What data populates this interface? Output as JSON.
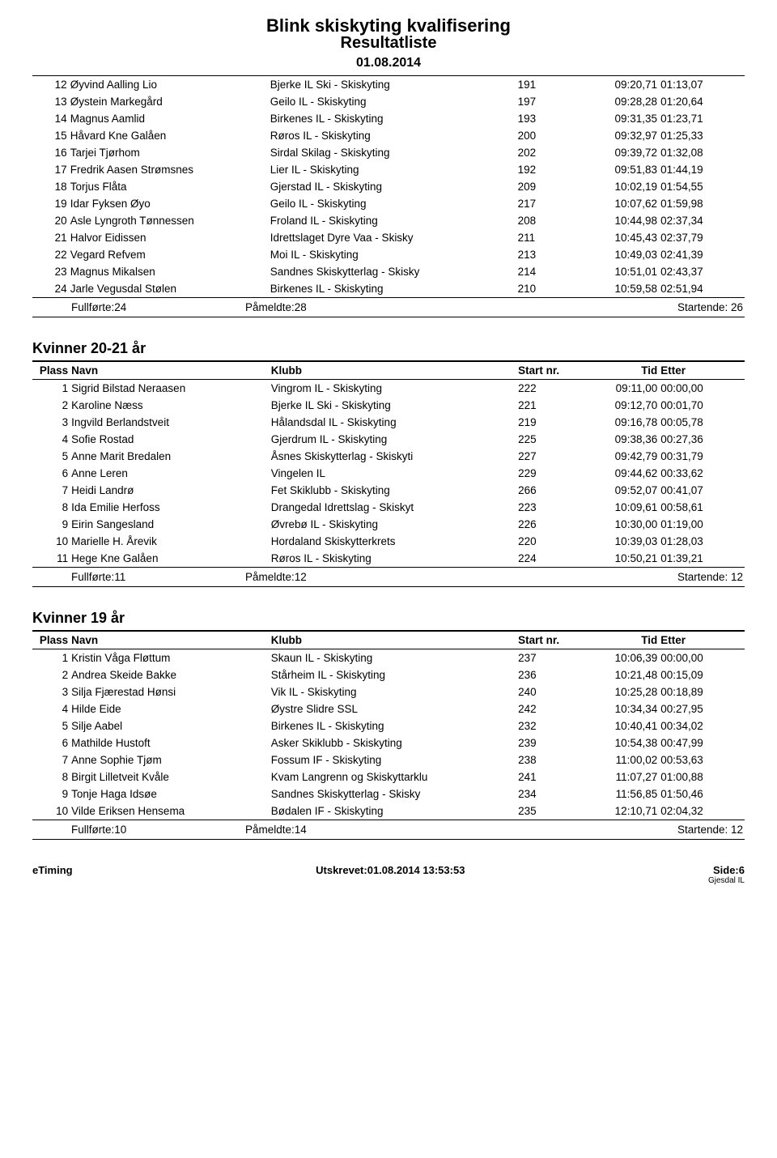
{
  "header": {
    "title": "Blink skiskyting kvalifisering",
    "subtitle": "Resultatliste",
    "date": "01.08.2014"
  },
  "top_section": {
    "rows": [
      {
        "plass": "12",
        "navn": "Øyvind Aalling Lio",
        "klubb": "Bjerke IL Ski - Skiskyting",
        "startnr": "191",
        "tid": "09:20,71",
        "etter": "01:13,07"
      },
      {
        "plass": "13",
        "navn": "Øystein Markegård",
        "klubb": "Geilo IL - Skiskyting",
        "startnr": "197",
        "tid": "09:28,28",
        "etter": "01:20,64"
      },
      {
        "plass": "14",
        "navn": "Magnus Aamlid",
        "klubb": "Birkenes IL - Skiskyting",
        "startnr": "193",
        "tid": "09:31,35",
        "etter": "01:23,71"
      },
      {
        "plass": "15",
        "navn": "Håvard Kne Galåen",
        "klubb": "Røros IL - Skiskyting",
        "startnr": "200",
        "tid": "09:32,97",
        "etter": "01:25,33"
      },
      {
        "plass": "16",
        "navn": "Tarjei Tjørhom",
        "klubb": "Sirdal Skilag - Skiskyting",
        "startnr": "202",
        "tid": "09:39,72",
        "etter": "01:32,08"
      },
      {
        "plass": "17",
        "navn": "Fredrik Aasen Strømsnes",
        "klubb": "Lier IL - Skiskyting",
        "startnr": "192",
        "tid": "09:51,83",
        "etter": "01:44,19"
      },
      {
        "plass": "18",
        "navn": "Torjus Flåta",
        "klubb": "Gjerstad IL - Skiskyting",
        "startnr": "209",
        "tid": "10:02,19",
        "etter": "01:54,55"
      },
      {
        "plass": "19",
        "navn": "Idar Fyksen Øyo",
        "klubb": "Geilo IL - Skiskyting",
        "startnr": "217",
        "tid": "10:07,62",
        "etter": "01:59,98"
      },
      {
        "plass": "20",
        "navn": "Asle Lyngroth Tønnessen",
        "klubb": "Froland IL - Skiskyting",
        "startnr": "208",
        "tid": "10:44,98",
        "etter": "02:37,34"
      },
      {
        "plass": "21",
        "navn": "Halvor Eidissen",
        "klubb": "Idrettslaget Dyre Vaa - Skisky",
        "startnr": "211",
        "tid": "10:45,43",
        "etter": "02:37,79"
      },
      {
        "plass": "22",
        "navn": "Vegard Refvem",
        "klubb": "Moi IL - Skiskyting",
        "startnr": "213",
        "tid": "10:49,03",
        "etter": "02:41,39"
      },
      {
        "plass": "23",
        "navn": "Magnus Mikalsen",
        "klubb": "Sandnes Skiskytterlag - Skisky",
        "startnr": "214",
        "tid": "10:51,01",
        "etter": "02:43,37"
      },
      {
        "plass": "24",
        "navn": "Jarle Vegusdal Stølen",
        "klubb": "Birkenes IL - Skiskyting",
        "startnr": "210",
        "tid": "10:59,58",
        "etter": "02:51,94"
      }
    ],
    "summary": {
      "fullforte": "Fullførte:24",
      "pameldte": "Påmeldte:28",
      "startende": "Startende: 26"
    }
  },
  "columns": {
    "plass": "Plass",
    "navn": "Navn",
    "klubb": "Klubb",
    "startnr": "Start nr.",
    "tid": "Tid",
    "etter": "Etter"
  },
  "sections": [
    {
      "title": "Kvinner 20-21 år",
      "rows": [
        {
          "plass": "1",
          "navn": "Sigrid Bilstad Neraasen",
          "klubb": "Vingrom IL - Skiskyting",
          "startnr": "222",
          "tid": "09:11,00",
          "etter": "00:00,00"
        },
        {
          "plass": "2",
          "navn": "Karoline Næss",
          "klubb": "Bjerke IL Ski - Skiskyting",
          "startnr": "221",
          "tid": "09:12,70",
          "etter": "00:01,70"
        },
        {
          "plass": "3",
          "navn": "Ingvild Berlandstveit",
          "klubb": "Hålandsdal IL - Skiskyting",
          "startnr": "219",
          "tid": "09:16,78",
          "etter": "00:05,78"
        },
        {
          "plass": "4",
          "navn": "Sofie Rostad",
          "klubb": "Gjerdrum IL - Skiskyting",
          "startnr": "225",
          "tid": "09:38,36",
          "etter": "00:27,36"
        },
        {
          "plass": "5",
          "navn": "Anne Marit Bredalen",
          "klubb": "Åsnes Skiskytterlag - Skiskyti",
          "startnr": "227",
          "tid": "09:42,79",
          "etter": "00:31,79"
        },
        {
          "plass": "6",
          "navn": "Anne Leren",
          "klubb": "Vingelen IL",
          "startnr": "229",
          "tid": "09:44,62",
          "etter": "00:33,62"
        },
        {
          "plass": "7",
          "navn": "Heidi Landrø",
          "klubb": "Fet Skiklubb - Skiskyting",
          "startnr": "266",
          "tid": "09:52,07",
          "etter": "00:41,07"
        },
        {
          "plass": "8",
          "navn": "Ida Emilie Herfoss",
          "klubb": "Drangedal Idrettslag - Skiskyt",
          "startnr": "223",
          "tid": "10:09,61",
          "etter": "00:58,61"
        },
        {
          "plass": "9",
          "navn": "Eirin Sangesland",
          "klubb": "Øvrebø IL - Skiskyting",
          "startnr": "226",
          "tid": "10:30,00",
          "etter": "01:19,00"
        },
        {
          "plass": "10",
          "navn": "Marielle H. Årevik",
          "klubb": "Hordaland Skiskytterkrets",
          "startnr": "220",
          "tid": "10:39,03",
          "etter": "01:28,03"
        },
        {
          "plass": "11",
          "navn": "Hege Kne Galåen",
          "klubb": "Røros IL - Skiskyting",
          "startnr": "224",
          "tid": "10:50,21",
          "etter": "01:39,21"
        }
      ],
      "summary": {
        "fullforte": "Fullførte:11",
        "pameldte": "Påmeldte:12",
        "startende": "Startende: 12"
      }
    },
    {
      "title": "Kvinner 19 år",
      "rows": [
        {
          "plass": "1",
          "navn": "Kristin Våga Fløttum",
          "klubb": "Skaun IL - Skiskyting",
          "startnr": "237",
          "tid": "10:06,39",
          "etter": "00:00,00"
        },
        {
          "plass": "2",
          "navn": "Andrea Skeide Bakke",
          "klubb": "Stårheim IL - Skiskyting",
          "startnr": "236",
          "tid": "10:21,48",
          "etter": "00:15,09"
        },
        {
          "plass": "3",
          "navn": "Silja Fjærestad Hønsi",
          "klubb": "Vik IL - Skiskyting",
          "startnr": "240",
          "tid": "10:25,28",
          "etter": "00:18,89"
        },
        {
          "plass": "4",
          "navn": "Hilde Eide",
          "klubb": "Øystre Slidre SSL",
          "startnr": "242",
          "tid": "10:34,34",
          "etter": "00:27,95"
        },
        {
          "plass": "5",
          "navn": "Silje Aabel",
          "klubb": "Birkenes IL - Skiskyting",
          "startnr": "232",
          "tid": "10:40,41",
          "etter": "00:34,02"
        },
        {
          "plass": "6",
          "navn": "Mathilde Hustoft",
          "klubb": "Asker Skiklubb  - Skiskyting",
          "startnr": "239",
          "tid": "10:54,38",
          "etter": "00:47,99"
        },
        {
          "plass": "7",
          "navn": "Anne Sophie Tjøm",
          "klubb": "Fossum IF - Skiskyting",
          "startnr": "238",
          "tid": "11:00,02",
          "etter": "00:53,63"
        },
        {
          "plass": "8",
          "navn": "Birgit Lilletveit Kvåle",
          "klubb": "Kvam Langrenn og Skiskyttarklu",
          "startnr": "241",
          "tid": "11:07,27",
          "etter": "01:00,88"
        },
        {
          "plass": "9",
          "navn": "Tonje Haga Idsøe",
          "klubb": "Sandnes Skiskytterlag - Skisky",
          "startnr": "234",
          "tid": "11:56,85",
          "etter": "01:50,46"
        },
        {
          "plass": "10",
          "navn": "Vilde Eriksen Hensema",
          "klubb": "Bødalen IF - Skiskyting",
          "startnr": "235",
          "tid": "12:10,71",
          "etter": "02:04,32"
        }
      ],
      "summary": {
        "fullforte": "Fullførte:10",
        "pameldte": "Påmeldte:14",
        "startende": "Startende: 12"
      }
    }
  ],
  "footer": {
    "left": "eTiming",
    "center": "Utskrevet:01.08.2014 13:53:53",
    "right": "Side:6",
    "sub": "Gjesdal IL"
  }
}
